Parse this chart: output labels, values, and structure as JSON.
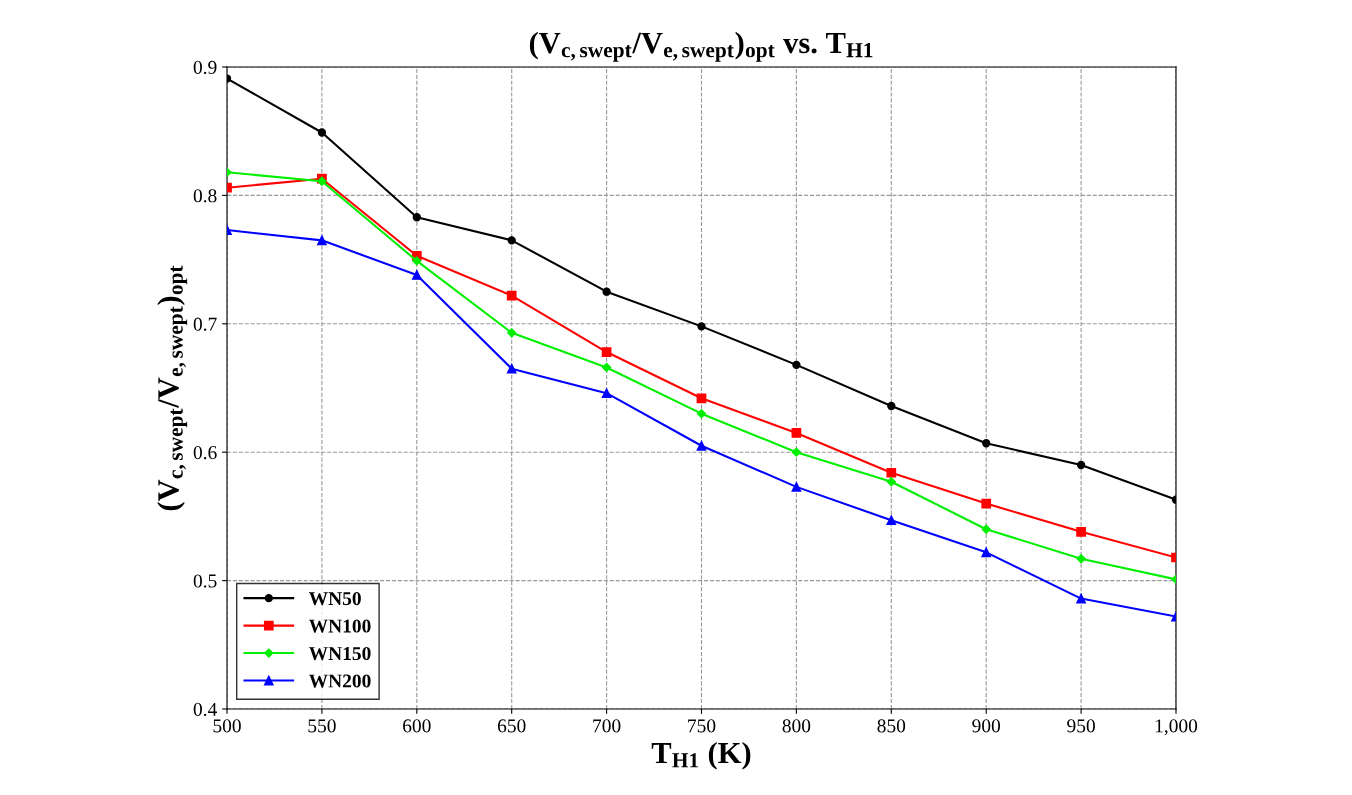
{
  "chart_data": {
    "type": "line",
    "title": "(V$_{c,swept}$/V$_{e,swept}$)$_{opt}$ vs. T$_{H1}$",
    "xlabel": "T$_{H1}$ (K)",
    "ylabel": "(V$_{c,swept}$/V$_{e,swept}$)$_{opt}$",
    "x": [
      500,
      550,
      600,
      650,
      700,
      750,
      800,
      850,
      900,
      950,
      1000
    ],
    "series": [
      {
        "name": "WN50",
        "color": "#000000",
        "marker": "circle",
        "values": [
          0.891,
          0.849,
          0.783,
          0.765,
          0.725,
          0.698,
          0.668,
          0.636,
          0.607,
          0.59,
          0.563
        ]
      },
      {
        "name": "WN100",
        "color": "#ff0000",
        "marker": "square",
        "values": [
          0.806,
          0.813,
          0.753,
          0.722,
          0.678,
          0.642,
          0.615,
          0.584,
          0.56,
          0.538,
          0.518
        ]
      },
      {
        "name": "WN150",
        "color": "#00ee00",
        "marker": "diamond",
        "values": [
          0.818,
          0.811,
          0.749,
          0.693,
          0.666,
          0.63,
          0.6,
          0.577,
          0.54,
          0.517,
          0.501
        ]
      },
      {
        "name": "WN200",
        "color": "#0000ff",
        "marker": "triangle",
        "values": [
          0.773,
          0.765,
          0.738,
          0.665,
          0.646,
          0.605,
          0.573,
          0.547,
          0.522,
          0.486,
          0.472
        ]
      }
    ],
    "xlim": [
      500,
      1000
    ],
    "xticks": [
      500,
      550,
      600,
      650,
      700,
      750,
      800,
      850,
      900,
      950,
      {
        "value": 1000,
        "label": "1,000"
      }
    ],
    "ylim": [
      0.4,
      0.9
    ],
    "yticks": [
      0.4,
      0.5,
      0.6,
      0.7,
      0.8,
      0.9
    ],
    "grid": true,
    "legend": "bottom left",
    "line_style": "solid"
  }
}
